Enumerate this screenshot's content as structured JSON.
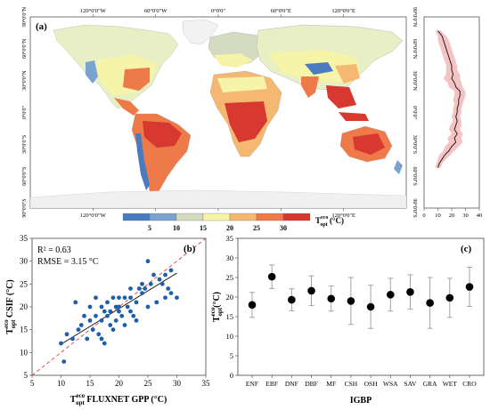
{
  "chart_data": [
    {
      "type": "map",
      "panel_label": "(a)",
      "top_ticks": [
        "120°0'0\"W",
        "60°0'0\"W",
        "0°0'0\"",
        "60°0'0\"E",
        "120°0'0\"E"
      ],
      "bottom_ticks": [
        "120°0'0\"W",
        "60°0'0\"W",
        "0°0'0\"",
        "60°0'0\"E",
        "120°0'0\"E"
      ],
      "lat_ticks": [
        "90°0'0\"N",
        "60°0'0\"N",
        "30°0'0\"N",
        "0°0'0\"",
        "30°0'0\"S",
        "60°0'0\"S",
        "90°0'0\"S"
      ],
      "colorbar": {
        "colors": [
          "#4a7bbf",
          "#7ba3cf",
          "#d4dbc0",
          "#f6f4a8",
          "#f4b870",
          "#ee7a4a",
          "#d7382f"
        ],
        "ticks": [
          "5",
          "10",
          "15",
          "20",
          "25",
          "30"
        ],
        "label_main": "T",
        "label_sup": "eco",
        "label_sub": "opt",
        "label_unit": " (°C)"
      }
    },
    {
      "type": "line",
      "panel": "latitudinal-profile",
      "xlim": [
        0,
        40
      ],
      "xticks": [
        "0",
        "10",
        "20",
        "30",
        "40"
      ],
      "line_color": "#222222",
      "band_color": "#f3b8b8",
      "profile": [
        {
          "lat": 77,
          "mean": 10,
          "sd": 2
        },
        {
          "lat": 72,
          "mean": 13,
          "sd": 3
        },
        {
          "lat": 68,
          "mean": 14,
          "sd": 4
        },
        {
          "lat": 64,
          "mean": 15,
          "sd": 4
        },
        {
          "lat": 60,
          "mean": 16,
          "sd": 4
        },
        {
          "lat": 56,
          "mean": 17,
          "sd": 4
        },
        {
          "lat": 52,
          "mean": 18,
          "sd": 4
        },
        {
          "lat": 48,
          "mean": 19,
          "sd": 4
        },
        {
          "lat": 44,
          "mean": 20,
          "sd": 4
        },
        {
          "lat": 40,
          "mean": 20,
          "sd": 4
        },
        {
          "lat": 36,
          "mean": 21,
          "sd": 5
        },
        {
          "lat": 32,
          "mean": 20,
          "sd": 6
        },
        {
          "lat": 28,
          "mean": 22,
          "sd": 5
        },
        {
          "lat": 24,
          "mean": 23,
          "sd": 5
        },
        {
          "lat": 20,
          "mean": 26,
          "sd": 4
        },
        {
          "lat": 16,
          "mean": 26,
          "sd": 4
        },
        {
          "lat": 12,
          "mean": 25,
          "sd": 4
        },
        {
          "lat": 8,
          "mean": 25,
          "sd": 3
        },
        {
          "lat": 4,
          "mean": 24,
          "sd": 3
        },
        {
          "lat": 0,
          "mean": 24,
          "sd": 3
        },
        {
          "lat": -4,
          "mean": 23,
          "sd": 3
        },
        {
          "lat": -8,
          "mean": 24,
          "sd": 3
        },
        {
          "lat": -12,
          "mean": 23,
          "sd": 4
        },
        {
          "lat": -16,
          "mean": 22,
          "sd": 4
        },
        {
          "lat": -20,
          "mean": 24,
          "sd": 4
        },
        {
          "lat": -24,
          "mean": 22,
          "sd": 5
        },
        {
          "lat": -28,
          "mean": 23,
          "sd": 5
        },
        {
          "lat": -32,
          "mean": 20,
          "sd": 5
        },
        {
          "lat": -36,
          "mean": 18,
          "sd": 4
        },
        {
          "lat": -40,
          "mean": 15,
          "sd": 4
        },
        {
          "lat": -44,
          "mean": 13,
          "sd": 3
        },
        {
          "lat": -48,
          "mean": 11,
          "sd": 2
        },
        {
          "lat": -52,
          "mean": 10,
          "sd": 2
        }
      ]
    },
    {
      "type": "scatter",
      "panel_label": "(b)",
      "stats": [
        "R² = 0.63",
        "RMSE = 3.15 °C"
      ],
      "xlim": [
        5,
        35
      ],
      "ylim": [
        5,
        35
      ],
      "xticks": [
        5,
        10,
        15,
        20,
        25,
        30,
        35
      ],
      "yticks": [
        5,
        10,
        15,
        20,
        25,
        30,
        35
      ],
      "xlabel_main": "T",
      "xlabel_sup": "eco",
      "xlabel_sub": "opt",
      "xlabel_rest": " FLUXNET GPP (°C)",
      "ylabel_main": "T",
      "ylabel_sup": "eco",
      "ylabel_sub": "opt",
      "ylabel_rest": " CSIF (°C)",
      "point_color": "#1f5fa8",
      "fit_line": {
        "slope": 0.78,
        "intercept": 4.0
      },
      "points": [
        [
          10,
          12
        ],
        [
          10.5,
          8
        ],
        [
          11,
          14
        ],
        [
          12,
          13
        ],
        [
          12.5,
          21
        ],
        [
          13,
          15
        ],
        [
          13.5,
          16
        ],
        [
          14,
          18
        ],
        [
          14.5,
          13
        ],
        [
          15,
          17
        ],
        [
          15,
          20
        ],
        [
          15.5,
          15
        ],
        [
          16,
          18
        ],
        [
          16,
          22
        ],
        [
          16.5,
          14
        ],
        [
          17,
          13
        ],
        [
          17,
          20
        ],
        [
          17.5,
          19
        ],
        [
          17.5,
          12
        ],
        [
          18,
          18
        ],
        [
          18,
          21
        ],
        [
          18.5,
          16
        ],
        [
          18.5,
          19
        ],
        [
          19,
          15
        ],
        [
          19,
          22
        ],
        [
          19.5,
          20
        ],
        [
          19.5,
          17
        ],
        [
          20,
          22
        ],
        [
          20,
          19
        ],
        [
          20.5,
          18
        ],
        [
          21,
          22
        ],
        [
          21,
          16
        ],
        [
          21.5,
          20
        ],
        [
          22,
          22
        ],
        [
          22,
          24
        ],
        [
          22.5,
          18
        ],
        [
          23,
          17
        ],
        [
          23,
          21
        ],
        [
          23.5,
          24
        ],
        [
          24,
          23
        ],
        [
          24,
          25
        ],
        [
          24.5,
          24
        ],
        [
          25,
          30
        ],
        [
          25,
          20
        ],
        [
          25.5,
          25
        ],
        [
          26,
          27
        ],
        [
          26.5,
          21
        ],
        [
          27,
          26
        ],
        [
          27.5,
          25
        ],
        [
          28,
          27
        ],
        [
          28,
          22
        ],
        [
          28.5,
          24
        ],
        [
          29,
          28
        ],
        [
          29,
          23
        ],
        [
          30,
          22
        ],
        [
          20,
          20
        ],
        [
          17,
          17
        ],
        [
          22,
          19
        ]
      ]
    },
    {
      "type": "scatter",
      "panel_label": "(c)",
      "ylim": [
        0,
        35
      ],
      "yticks": [
        0,
        5,
        10,
        15,
        20,
        25,
        30,
        35
      ],
      "xlabel": "IGBP",
      "ylabel_main": "T",
      "ylabel_sup": "eco",
      "ylabel_sub": "opt",
      "ylabel_rest": "(°C)",
      "categories": [
        "ENF",
        "EBF",
        "DNF",
        "DBF",
        "MF",
        "CSH",
        "OSH",
        "WSA",
        "SAV",
        "GRA",
        "WET",
        "CRO"
      ],
      "values": [
        18.0,
        25.2,
        19.3,
        21.6,
        19.6,
        19.0,
        17.5,
        20.6,
        21.3,
        18.5,
        19.8,
        22.6
      ],
      "errors": [
        3.2,
        3.0,
        2.8,
        3.8,
        3.2,
        6.0,
        5.5,
        4.2,
        4.4,
        6.5,
        5.0,
        5.0
      ]
    }
  ]
}
